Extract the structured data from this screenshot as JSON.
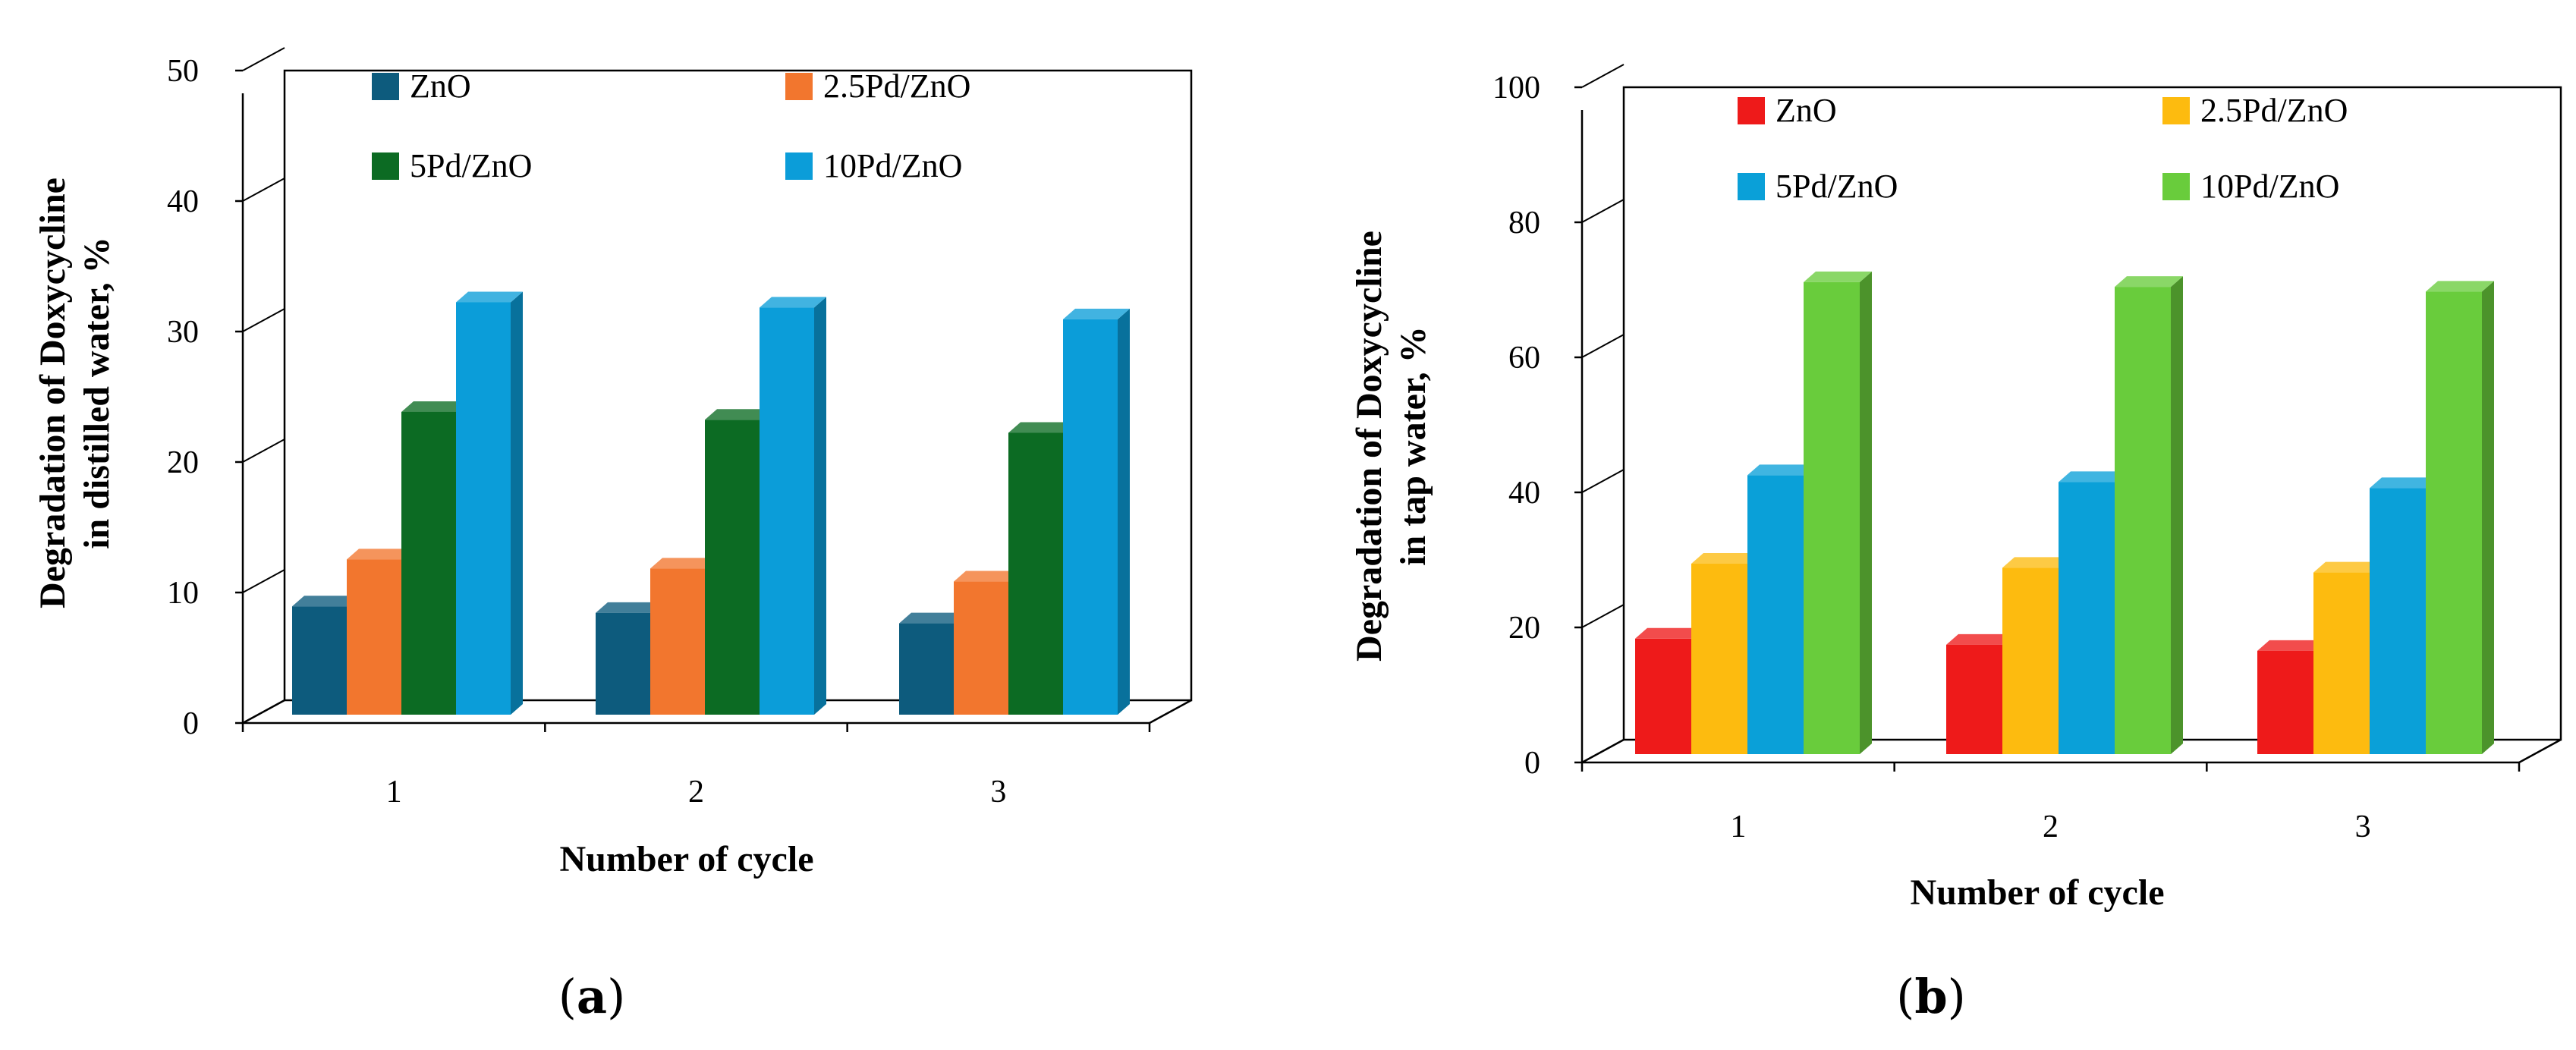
{
  "chart_data": [
    {
      "type": "bar",
      "panel_label": "a",
      "categories": [
        "1",
        "2",
        "3"
      ],
      "series": [
        {
          "name": "ZnO",
          "values": [
            8.3,
            7.8,
            7.0
          ]
        },
        {
          "name": "2.5Pd/ZnO",
          "values": [
            11.9,
            11.2,
            10.2
          ]
        },
        {
          "name": "5Pd/ZnO",
          "values": [
            23.2,
            22.6,
            21.6
          ]
        },
        {
          "name": "10Pd/ZnO",
          "values": [
            31.6,
            31.2,
            30.3
          ]
        }
      ],
      "colors": [
        "#0d5b7d",
        "#f2762e",
        "#0c6b23",
        "#0b9dd9"
      ],
      "xlabel": "Number of cycle",
      "ylabel": [
        "Degradation of Doxycycline",
        "in distilled water, %"
      ],
      "ylim": [
        0,
        50
      ],
      "yticks": [
        "0",
        "10",
        "20",
        "30",
        "40",
        "50"
      ],
      "legend_position": "top"
    },
    {
      "type": "bar",
      "panel_label": "b",
      "categories": [
        "1",
        "2",
        "3"
      ],
      "series": [
        {
          "name": "ZnO",
          "values": [
            17.1,
            16.2,
            15.3
          ]
        },
        {
          "name": "2.5Pd/ZnO",
          "values": [
            28.2,
            27.6,
            26.9
          ]
        },
        {
          "name": "5Pd/ZnO",
          "values": [
            41.3,
            40.3,
            39.4
          ]
        },
        {
          "name": "10Pd/ZnO",
          "values": [
            69.9,
            69.2,
            68.5
          ]
        }
      ],
      "colors": [
        "#ee1a1a",
        "#fdbb0f",
        "#0aa0d8",
        "#69cc3c"
      ],
      "xlabel": "Number of cycle",
      "ylabel": [
        "Degradation of Doxycycline",
        "in tap water, %"
      ],
      "ylim": [
        0,
        100
      ],
      "yticks": [
        "0",
        "20",
        "40",
        "60",
        "80",
        "100"
      ],
      "legend_position": "top"
    }
  ]
}
